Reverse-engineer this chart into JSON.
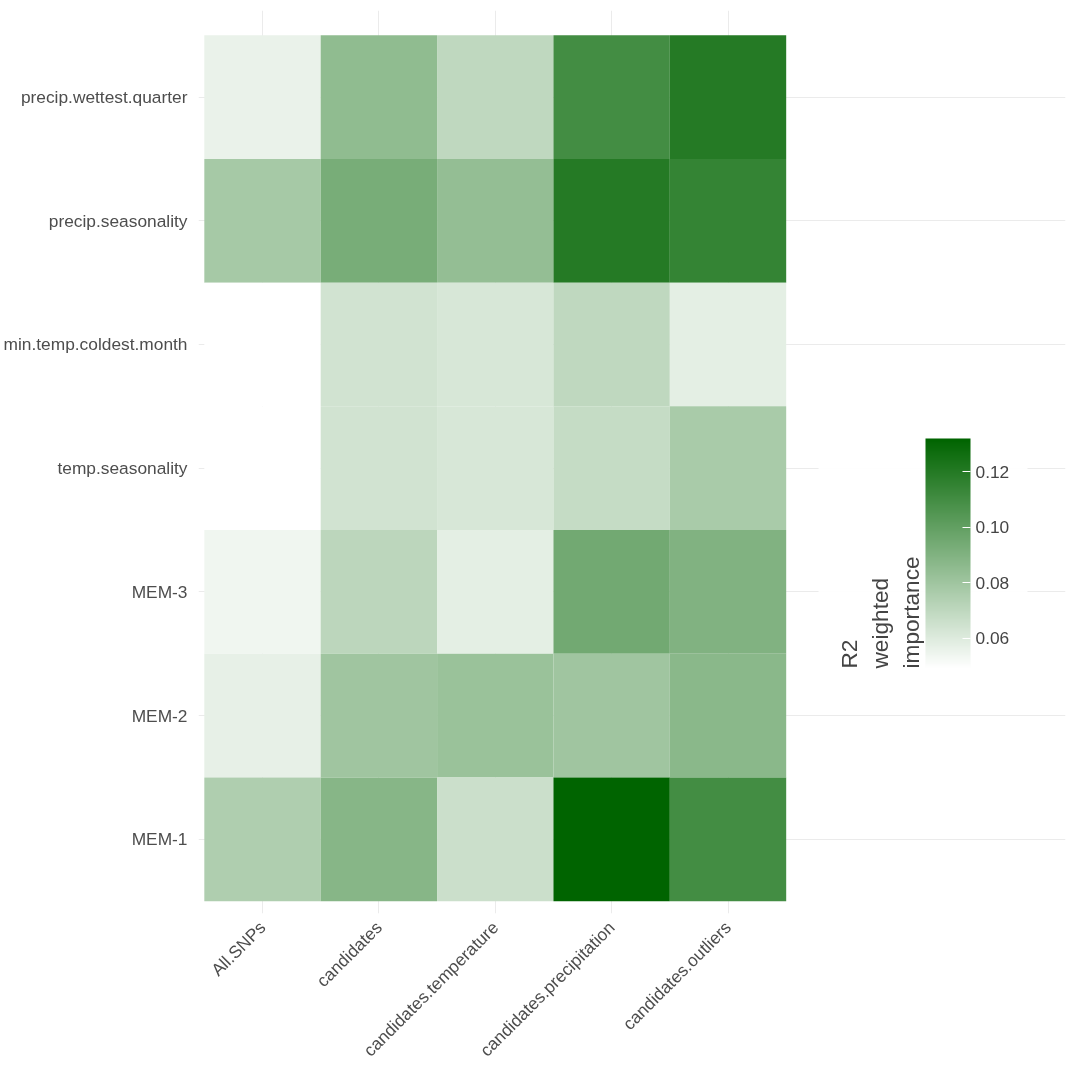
{
  "chart_data": {
    "type": "heatmap",
    "legend_title": "R2 weighted importance",
    "categories": [
      "All.SNPs",
      "candidates",
      "candidates.temperature",
      "candidates.precipitation",
      "candidates.outliers"
    ],
    "y_categories": [
      "precip.wettest.quarter",
      "precip.seasonality",
      "min.temp.coldest.month",
      "temp.seasonality",
      "MEM-3",
      "MEM-2",
      "MEM-1"
    ],
    "cells": [
      [
        0.056,
        0.085,
        0.07,
        0.11,
        0.12
      ],
      [
        0.078,
        0.093,
        0.084,
        0.12,
        0.115
      ],
      [
        0.049,
        0.064,
        0.062,
        0.07,
        0.058
      ],
      [
        0.049,
        0.064,
        0.062,
        0.068,
        0.077
      ],
      [
        0.054,
        0.071,
        0.058,
        0.095,
        0.09
      ],
      [
        0.057,
        0.08,
        0.082,
        0.08,
        0.087
      ],
      [
        0.075,
        0.088,
        0.066,
        0.132,
        0.11
      ]
    ],
    "clim": [
      0.049,
      0.132
    ],
    "cticks": [
      0.06,
      0.08,
      {
        "value": 0.1,
        "label": "0.10"
      },
      0.12
    ],
    "grid": true
  }
}
